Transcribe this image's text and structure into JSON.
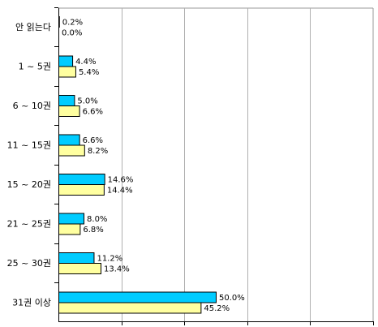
{
  "chart_data": {
    "type": "bar",
    "orientation": "horizontal",
    "categories": [
      "안 읽는다",
      "1 ~ 5권",
      "6 ~ 10권",
      "11 ~ 15권",
      "15 ~ 20권",
      "21 ~ 25권",
      "25 ~ 30권",
      "31권 이상"
    ],
    "series": [
      {
        "color": "#00ccff",
        "values": [
          0.2,
          4.4,
          5.0,
          6.6,
          14.6,
          8.0,
          11.2,
          50.0
        ],
        "labels": [
          "0.2%",
          "4.4%",
          "5.0%",
          "6.6%",
          "14.6%",
          "8.0%",
          "11.2%",
          "50.0%"
        ]
      },
      {
        "color": "#ffffa0",
        "values": [
          0.0,
          5.4,
          6.6,
          8.2,
          14.4,
          6.8,
          13.4,
          45.2
        ],
        "labels": [
          "0.0%",
          "5.4%",
          "6.6%",
          "8.2%",
          "14.4%",
          "6.8%",
          "13.4%",
          "45.2%"
        ]
      }
    ],
    "xlim": [
      0,
      100
    ],
    "grid": true,
    "legend": "none",
    "title": "",
    "xlabel": "",
    "ylabel": ""
  }
}
